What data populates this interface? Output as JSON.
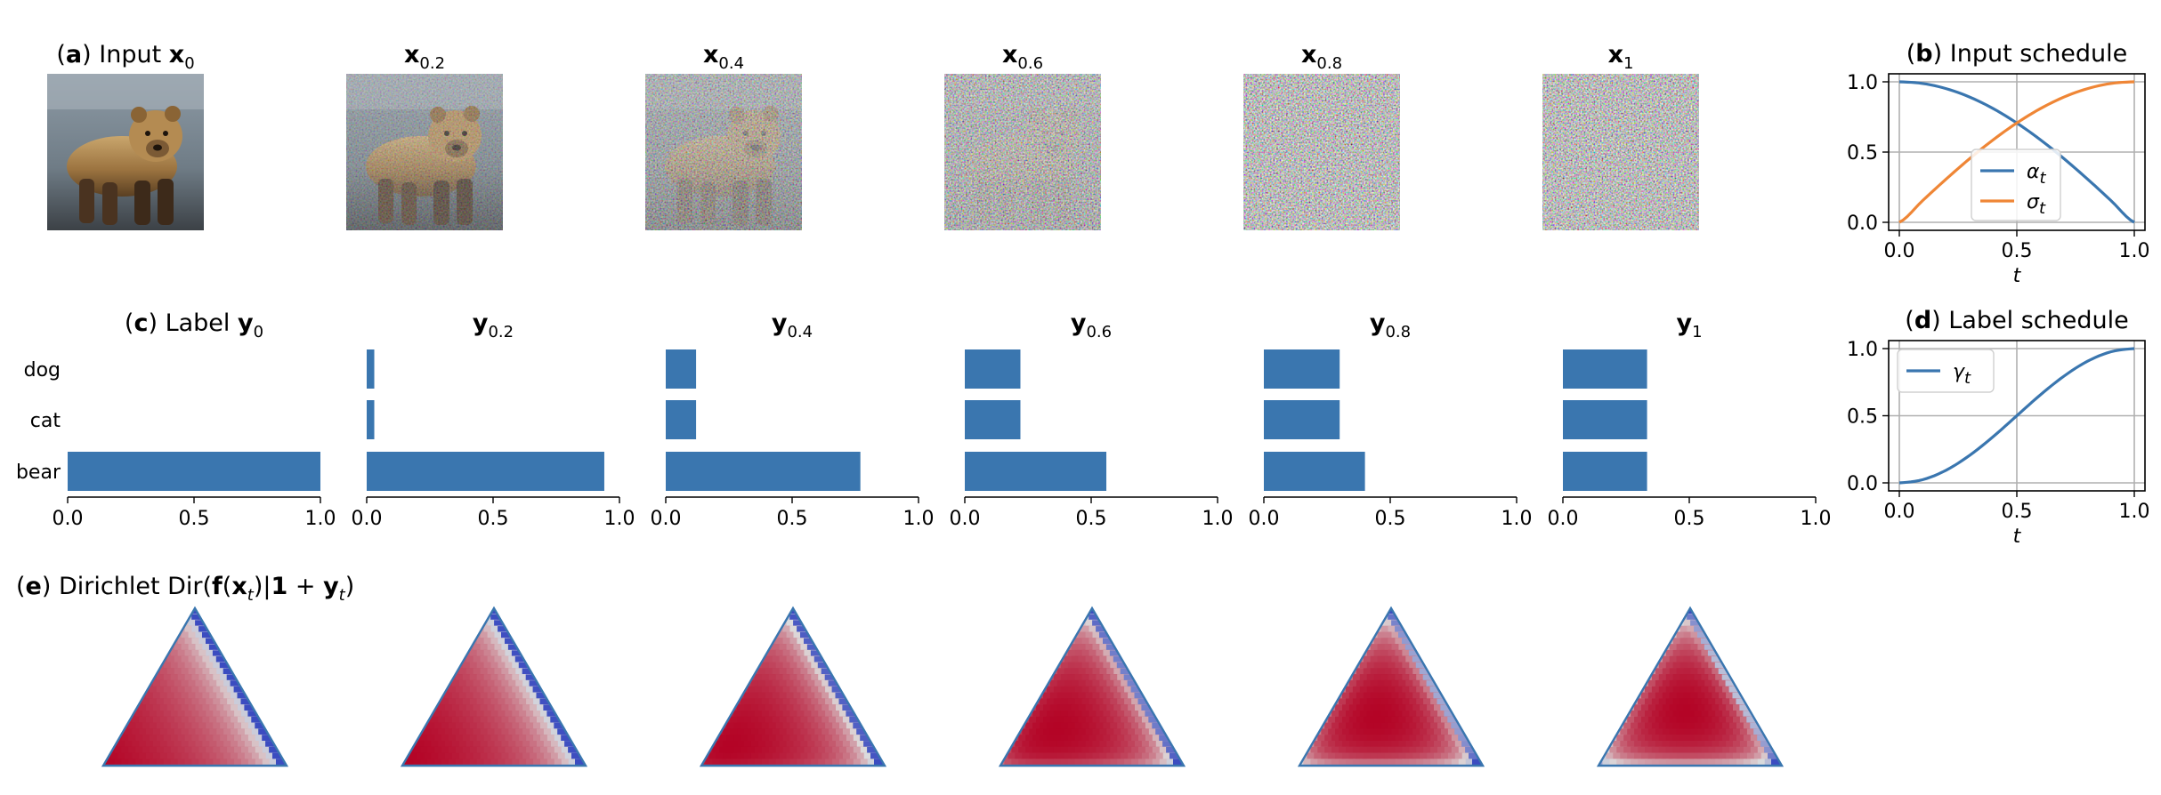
{
  "colors": {
    "bar": "#3a76af",
    "alpha": "#3a76af",
    "sigma": "#ef8636",
    "gamma": "#3a76af",
    "grid": "#b0b0b0",
    "heat_low": "#3b4cc0",
    "heat_mid": "#dddddd",
    "heat_high": "#b40426"
  },
  "panel_a": {
    "title_tag": "a",
    "title_text": "Input",
    "columns": [
      {
        "sym": "x",
        "sub": "0"
      },
      {
        "sym": "x",
        "sub": "0.2"
      },
      {
        "sym": "x",
        "sub": "0.4"
      },
      {
        "sym": "x",
        "sub": "0.6"
      },
      {
        "sym": "x",
        "sub": "0.8"
      },
      {
        "sym": "x",
        "sub": "1"
      }
    ],
    "noise_levels": [
      0,
      0.2,
      0.4,
      0.6,
      0.8,
      1
    ]
  },
  "panel_b": {
    "title_tag": "b",
    "title_text": "Input schedule",
    "xlabel": "t",
    "xticks": [
      "0.0",
      "0.5",
      "1.0"
    ],
    "yticks": [
      "0.0",
      "0.5",
      "1.0"
    ],
    "legend": [
      {
        "sym": "α",
        "sub": "t"
      },
      {
        "sym": "σ",
        "sub": "t"
      }
    ]
  },
  "panel_c": {
    "title_tag": "c",
    "title_text": "Label",
    "columns": [
      {
        "sym": "y",
        "sub": "0"
      },
      {
        "sym": "y",
        "sub": "0.2"
      },
      {
        "sym": "y",
        "sub": "0.4"
      },
      {
        "sym": "y",
        "sub": "0.6"
      },
      {
        "sym": "y",
        "sub": "0.8"
      },
      {
        "sym": "y",
        "sub": "1"
      }
    ],
    "categories": [
      "dog",
      "cat",
      "bear"
    ],
    "xticks": [
      "0.0",
      "0.5",
      "1.0"
    ]
  },
  "panel_d": {
    "title_tag": "d",
    "title_text": "Label schedule",
    "xlabel": "t",
    "xticks": [
      "0.0",
      "0.5",
      "1.0"
    ],
    "yticks": [
      "0.0",
      "0.5",
      "1.0"
    ],
    "legend": [
      {
        "sym": "γ",
        "sub": "t"
      }
    ]
  },
  "panel_e": {
    "title_tag": "e",
    "title_pre": "Dirichlet Dir(",
    "title_f": "f",
    "title_mid1": "(",
    "title_x": "x",
    "title_mid2": ")|",
    "title_one": "1",
    "title_plus": " + ",
    "title_y": "y",
    "title_end": ")",
    "t_values": [
      0,
      0.2,
      0.4,
      0.6,
      0.8,
      1
    ]
  },
  "chart_data": [
    {
      "type": "bar",
      "orientation": "horizontal",
      "categories": [
        "dog",
        "cat",
        "bear"
      ],
      "series": [
        {
          "name": "y_0",
          "values": [
            0,
            0,
            1.0
          ]
        },
        {
          "name": "y_0.2",
          "values": [
            0.03,
            0.03,
            0.94
          ]
        },
        {
          "name": "y_0.4",
          "values": [
            0.12,
            0.12,
            0.77
          ]
        },
        {
          "name": "y_0.6",
          "values": [
            0.22,
            0.22,
            0.56
          ]
        },
        {
          "name": "y_0.8",
          "values": [
            0.3,
            0.3,
            0.4
          ]
        },
        {
          "name": "y_1",
          "values": [
            0.333,
            0.333,
            0.333
          ]
        }
      ],
      "xlim": [
        0,
        1
      ]
    },
    {
      "type": "line",
      "xlabel": "t",
      "xlim": [
        0,
        1
      ],
      "ylim": [
        0,
        1
      ],
      "grid": true,
      "legend_position": "center-right",
      "x": [
        0,
        0.1,
        0.2,
        0.3,
        0.4,
        0.5,
        0.6,
        0.7,
        0.8,
        0.9,
        1.0
      ],
      "series": [
        {
          "name": "α_t",
          "values": [
            1.0,
            0.988,
            0.951,
            0.891,
            0.809,
            0.707,
            0.588,
            0.454,
            0.309,
            0.156,
            0.0
          ]
        },
        {
          "name": "σ_t",
          "values": [
            0.0,
            0.156,
            0.309,
            0.454,
            0.588,
            0.707,
            0.809,
            0.891,
            0.951,
            0.988,
            1.0
          ]
        }
      ]
    },
    {
      "type": "line",
      "xlabel": "t",
      "xlim": [
        0,
        1
      ],
      "ylim": [
        0,
        1
      ],
      "grid": true,
      "legend_position": "top-left",
      "x": [
        0,
        0.1,
        0.2,
        0.3,
        0.4,
        0.5,
        0.6,
        0.7,
        0.8,
        0.9,
        1.0
      ],
      "series": [
        {
          "name": "γ_t",
          "values": [
            0.0,
            0.024,
            0.095,
            0.206,
            0.345,
            0.5,
            0.655,
            0.794,
            0.905,
            0.976,
            1.0
          ]
        }
      ]
    }
  ]
}
